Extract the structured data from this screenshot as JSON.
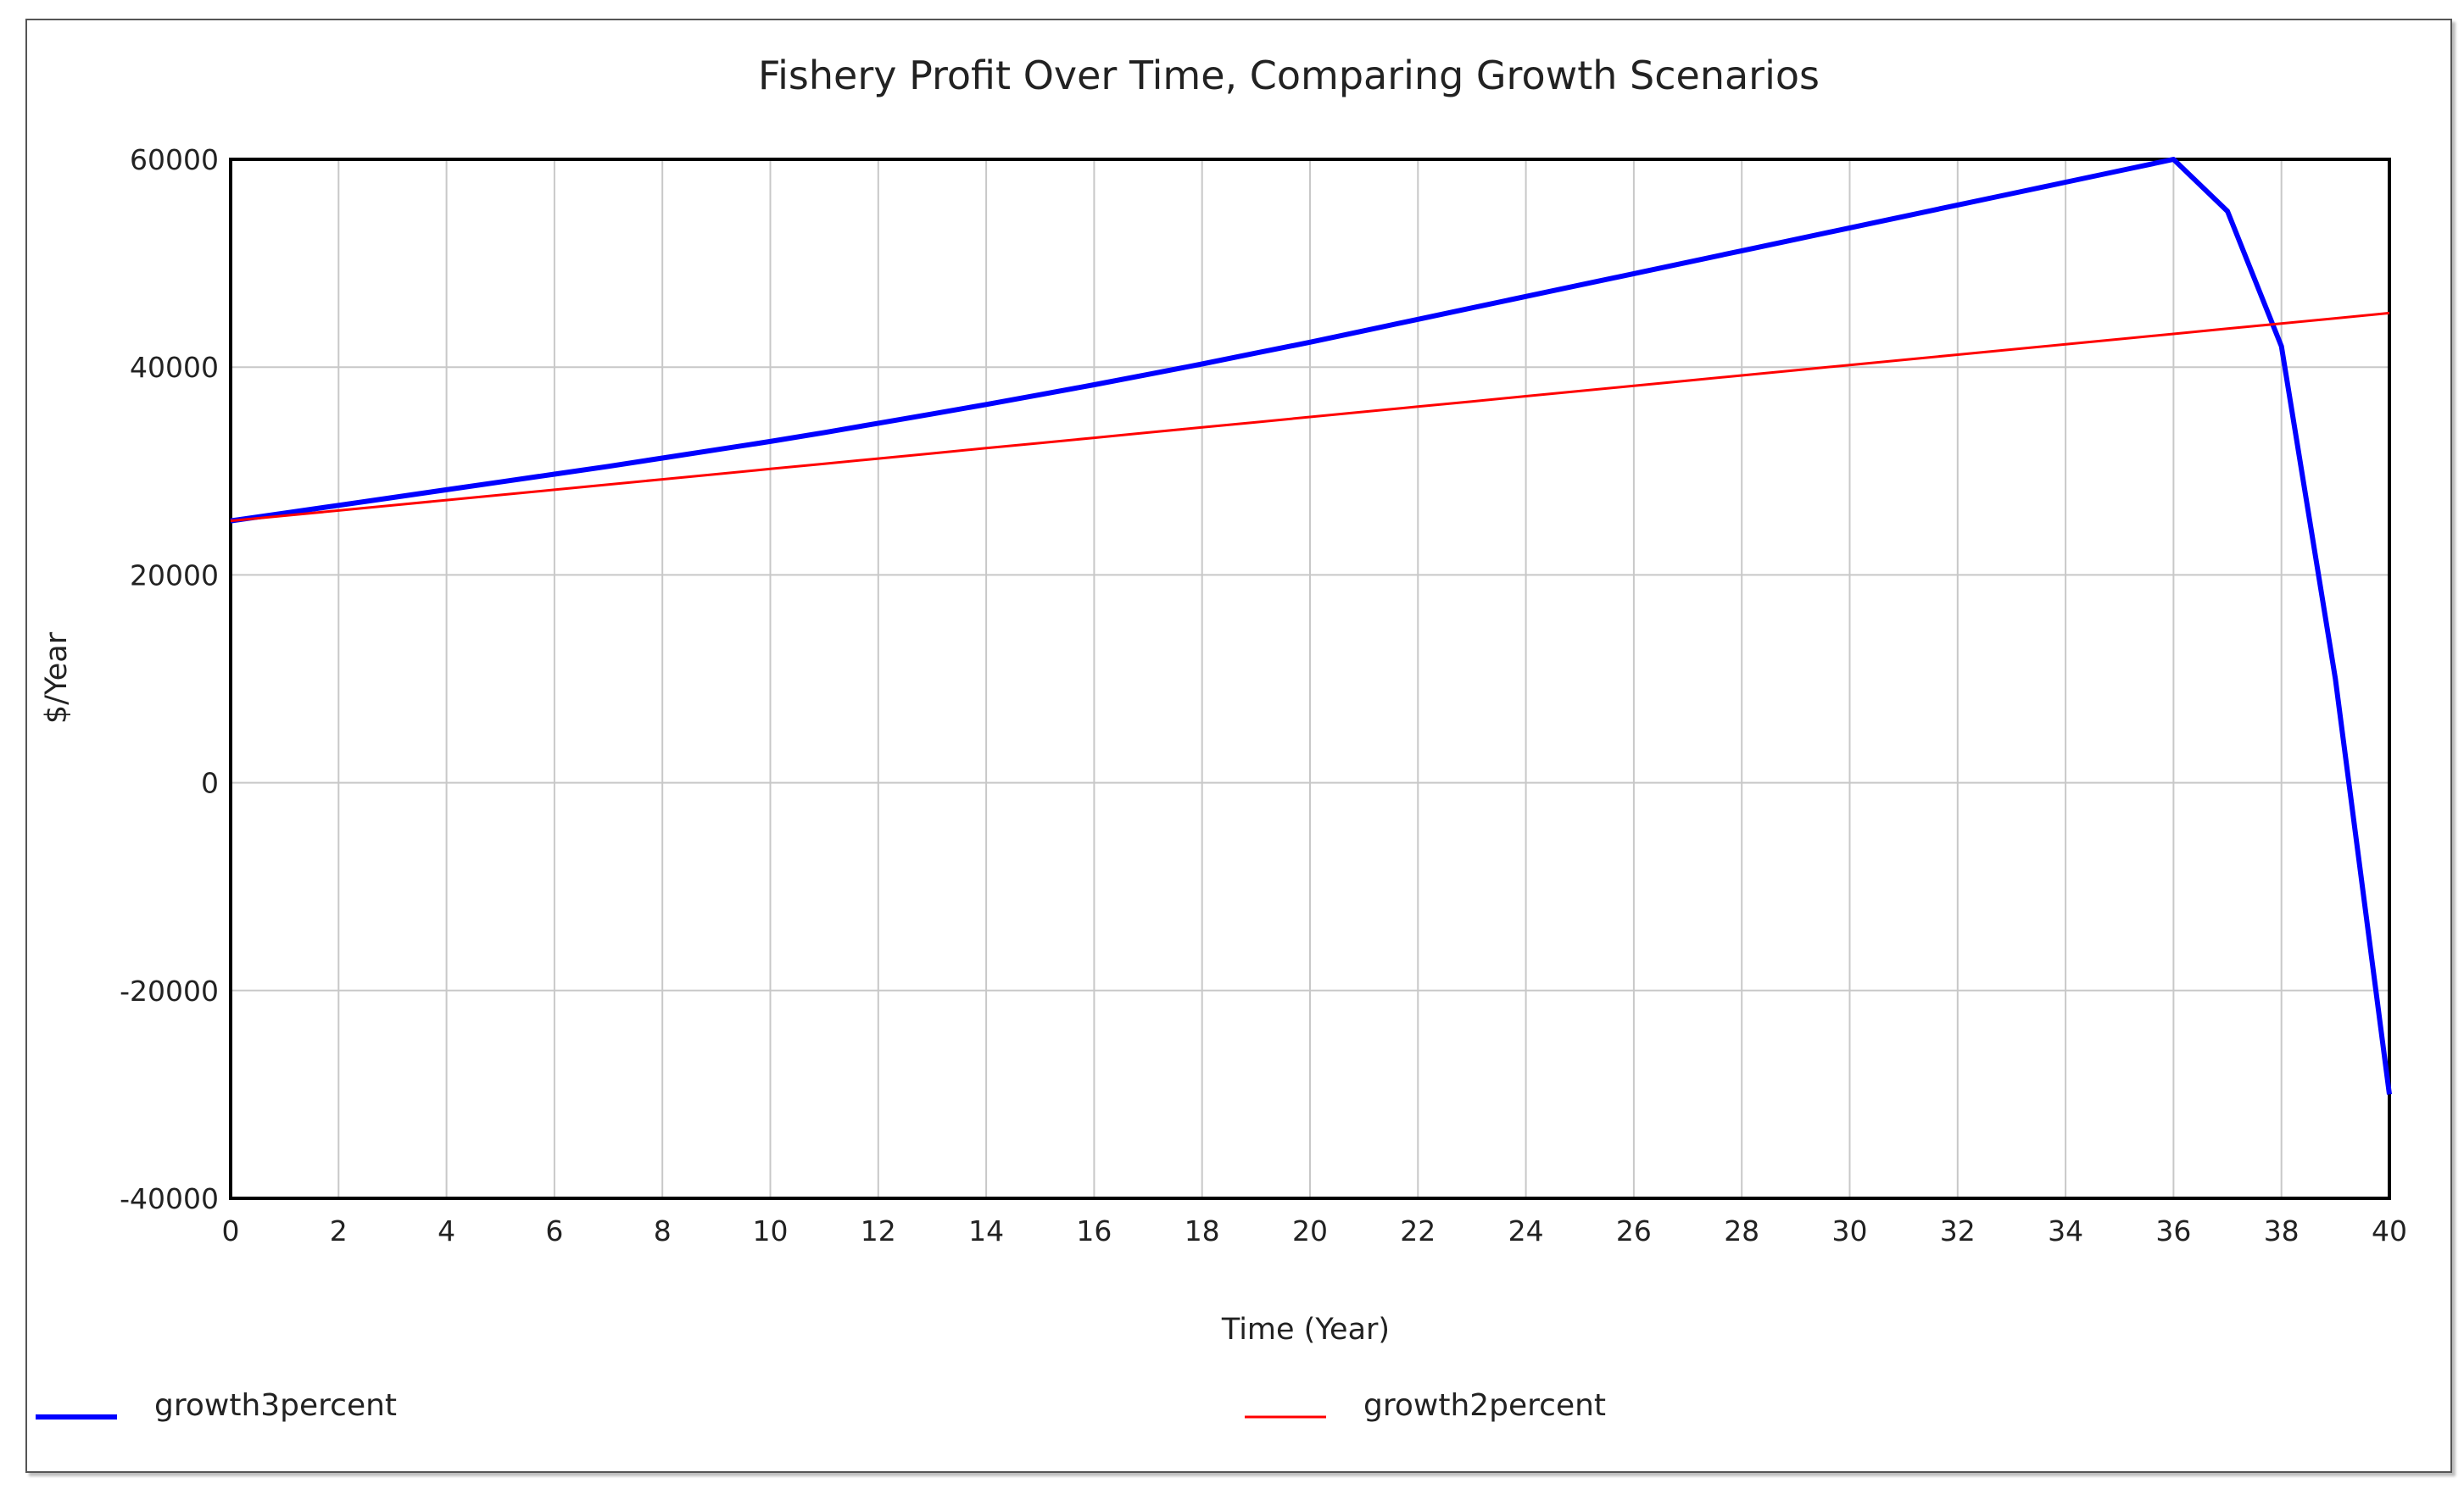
{
  "chart_data": {
    "type": "line",
    "title": "Fishery Profit Over Time, Comparing Growth Scenarios",
    "xlabel": "Time (Year)",
    "ylabel": "$/Year",
    "xlim": [
      0,
      40
    ],
    "ylim": [
      -40000,
      60000
    ],
    "x_ticks": [
      "0",
      "2",
      "4",
      "6",
      "8",
      "10",
      "12",
      "14",
      "16",
      "18",
      "20",
      "22",
      "24",
      "26",
      "28",
      "30",
      "32",
      "34",
      "36",
      "38",
      "40"
    ],
    "y_ticks": [
      "60000",
      "40000",
      "20000",
      "0",
      "-20000",
      "-40000"
    ],
    "grid": true,
    "legend_position": "bottom",
    "x": [
      0,
      1,
      2,
      3,
      4,
      5,
      6,
      7,
      8,
      9,
      10,
      11,
      12,
      13,
      14,
      15,
      16,
      17,
      18,
      19,
      20,
      21,
      22,
      23,
      24,
      25,
      26,
      27,
      28,
      29,
      30,
      31,
      32,
      33,
      34,
      35,
      36,
      37,
      38,
      39,
      40
    ],
    "series": [
      {
        "name": "growth3percent",
        "color": "#0000ff",
        "values": [
          25200,
          25950,
          26700,
          27450,
          28200,
          28950,
          29700,
          30450,
          31250,
          32050,
          32850,
          33700,
          34600,
          35500,
          36400,
          37350,
          38300,
          39300,
          40300,
          41350,
          42400,
          43500,
          44600,
          45700,
          46800,
          47900,
          49000,
          50100,
          51200,
          52300,
          53400,
          54500,
          55600,
          56700,
          57800,
          58900,
          60000,
          55000,
          42000,
          10000,
          -30000
        ]
      },
      {
        "name": "growth2percent",
        "color": "#ff0000",
        "values": [
          25200,
          25700,
          26200,
          26700,
          27200,
          27700,
          28200,
          28700,
          29200,
          29700,
          30200,
          30700,
          31200,
          31700,
          32200,
          32700,
          33200,
          33700,
          34200,
          34700,
          35200,
          35700,
          36200,
          36700,
          37200,
          37700,
          38200,
          38700,
          39200,
          39700,
          40200,
          40700,
          41200,
          41700,
          42200,
          42700,
          43200,
          43700,
          44200,
          44700,
          45200
        ]
      }
    ]
  }
}
